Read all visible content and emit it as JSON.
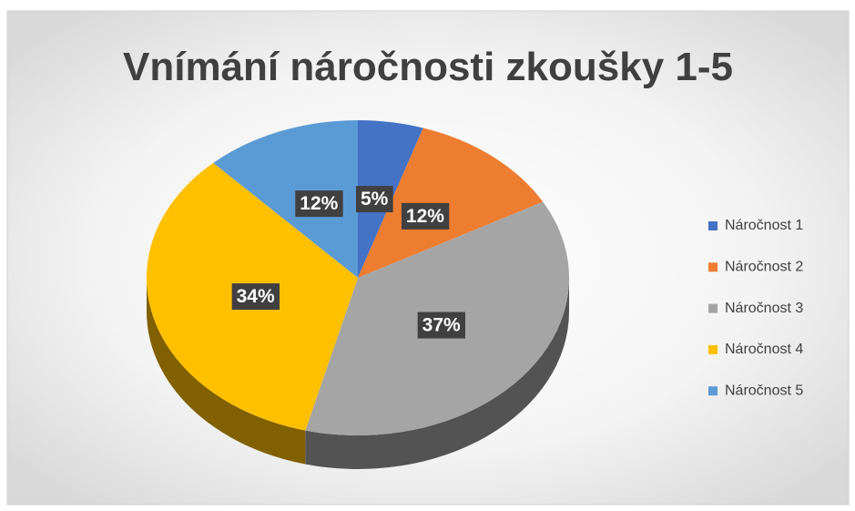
{
  "chart_data": {
    "type": "pie",
    "title": "Vnímání náročnosti zkoušky 1-5",
    "categories": [
      "Náročnost 1",
      "Náročnost 2",
      "Náročnost 3",
      "Náročnost 4",
      "Náročnost 5"
    ],
    "values": [
      5,
      12,
      37,
      34,
      12
    ],
    "value_labels": [
      "5%",
      "12%",
      "37%",
      "34%",
      "12%"
    ],
    "colors": [
      "#4472c4",
      "#ed7d31",
      "#a5a5a5",
      "#ffc000",
      "#5b9bd5"
    ],
    "legend": "right"
  }
}
